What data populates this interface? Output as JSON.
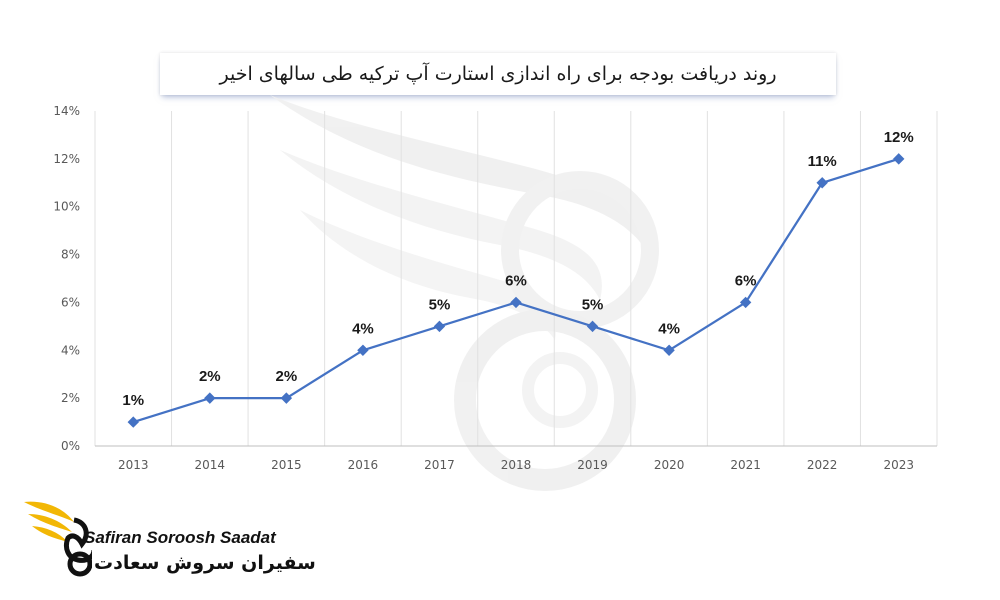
{
  "title": "روند دریافت بودجه برای راه اندازی استارت آپ ترکیه طی سالهای اخیر",
  "logo": {
    "latin_name": "Safiran Soroosh Saadat",
    "persian_name": "سفیران سروش سعادت",
    "accent_color": "#f2b705"
  },
  "chart_data": {
    "type": "line",
    "categories": [
      "2013",
      "2014",
      "2015",
      "2016",
      "2017",
      "2018",
      "2019",
      "2020",
      "2021",
      "2022",
      "2023"
    ],
    "series": [
      {
        "values": [
          1,
          2,
          2,
          4,
          5,
          6,
          5,
          4,
          6,
          11,
          12
        ],
        "labels": [
          "1%",
          "2%",
          "2%",
          "4%",
          "5%",
          "6%",
          "5%",
          "4%",
          "6%",
          "11%",
          "12%"
        ],
        "color": "#4472c4"
      }
    ],
    "yticks": [
      "0%",
      "2%",
      "4%",
      "6%",
      "8%",
      "10%",
      "12%",
      "14%"
    ],
    "ylim": [
      0,
      14
    ],
    "grid": "vertical",
    "legend": "none",
    "marker": "diamond"
  }
}
